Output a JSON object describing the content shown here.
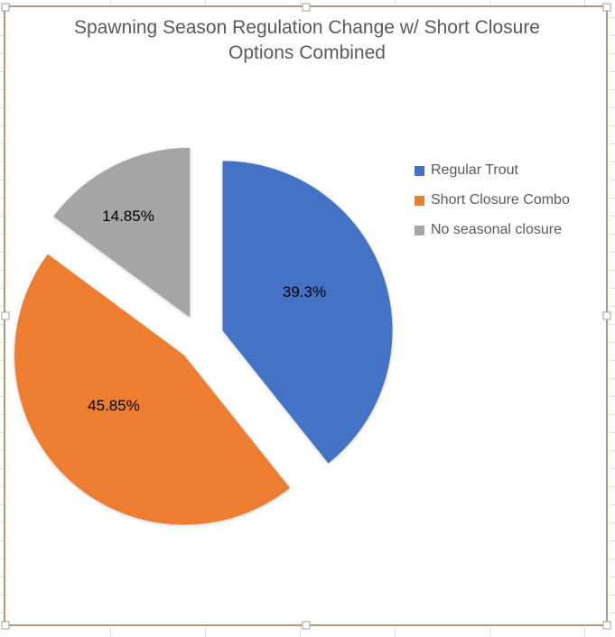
{
  "chart_data": {
    "type": "pie",
    "title": "Spawning Season Regulation Change w/ Short Closure Options Combined",
    "title_lines": [
      "Spawning Season Regulation Change w/ Short Closure",
      "Options Combined"
    ],
    "legend_position": "right",
    "exploded": true,
    "slices": [
      {
        "name": "Regular Trout",
        "value": 39.3,
        "label": "39.3%",
        "color": "#4472C4"
      },
      {
        "name": "Short Closure Combo",
        "value": 45.85,
        "label": "45.85%",
        "color": "#ED7D31"
      },
      {
        "name": "No seasonal closure",
        "value": 14.85,
        "label": "14.85%",
        "color": "#A5A5A5"
      }
    ]
  },
  "colors": {
    "title_text": "#595959",
    "legend_text": "#595959",
    "data_label_text": "#000000",
    "selection_border": "#B49878",
    "handle_fill": "#FFFFFF",
    "handle_border": "#A6A6A6",
    "worksheet_gridline": "#DEDEDE"
  }
}
